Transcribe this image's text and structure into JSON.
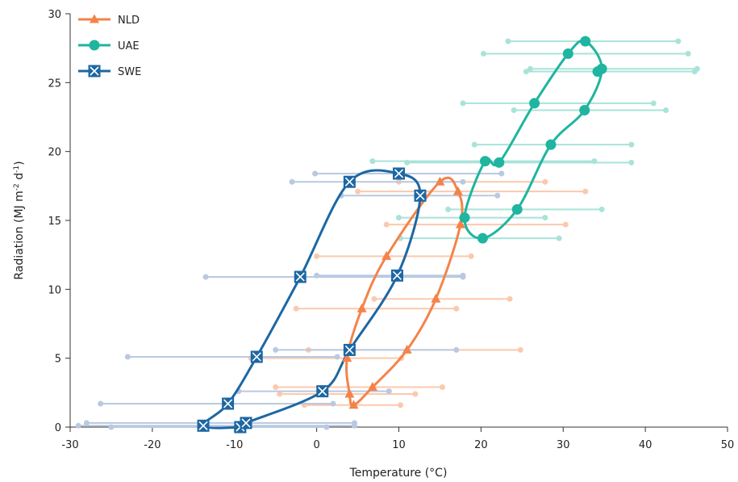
{
  "chart_data": {
    "type": "line",
    "xlabel": "Temperature (°C)",
    "ylabel_parts": [
      "Radiation (MJ m",
      "-2",
      " d",
      "-1",
      ")"
    ],
    "xlim": [
      -30,
      50
    ],
    "ylim": [
      0,
      30
    ],
    "xticks": [
      -30,
      -20,
      -10,
      0,
      10,
      20,
      30,
      40,
      50
    ],
    "yticks": [
      0,
      5,
      10,
      15,
      20,
      25,
      30
    ],
    "grid": false,
    "legend_position": "top-left",
    "series": [
      {
        "name": "NLD",
        "color": "#f4834a",
        "range_color": "#fbc9ad",
        "marker": "triangle",
        "points": [
          {
            "x": 4.5,
            "y": 1.6,
            "min": -1.5,
            "max": 10.2
          },
          {
            "x": 4.0,
            "y": 2.4,
            "min": -4.5,
            "max": 12.0
          },
          {
            "x": 6.8,
            "y": 2.9,
            "min": -5.0,
            "max": 15.3
          },
          {
            "x": 11.0,
            "y": 5.6,
            "min": -1.0,
            "max": 24.8
          },
          {
            "x": 3.7,
            "y": 5.0,
            "min": -8.0,
            "max": 10.3
          },
          {
            "x": 5.5,
            "y": 8.6,
            "min": -2.5,
            "max": 17.0
          },
          {
            "x": 14.5,
            "y": 9.3,
            "min": 7.0,
            "max": 23.5
          },
          {
            "x": 8.5,
            "y": 12.4,
            "min": 0.0,
            "max": 18.8
          },
          {
            "x": 17.5,
            "y": 14.7,
            "min": 8.5,
            "max": 30.3
          },
          {
            "x": 17.2,
            "y": 17.1,
            "min": 5.0,
            "max": 32.7
          },
          {
            "x": 15.0,
            "y": 17.8,
            "min": 10.0,
            "max": 27.8
          }
        ]
      },
      {
        "name": "UAE",
        "color": "#1fb5a0",
        "range_color": "#a9e3d9",
        "marker": "circle",
        "points": [
          {
            "x": 20.2,
            "y": 13.7,
            "min": 10.2,
            "max": 29.5
          },
          {
            "x": 24.4,
            "y": 15.8,
            "min": 16.0,
            "max": 34.7
          },
          {
            "x": 18.0,
            "y": 15.2,
            "min": 10.0,
            "max": 27.8
          },
          {
            "x": 20.5,
            "y": 19.3,
            "min": 6.8,
            "max": 33.8
          },
          {
            "x": 22.2,
            "y": 19.2,
            "min": 11.0,
            "max": 38.3
          },
          {
            "x": 28.5,
            "y": 20.5,
            "min": 19.2,
            "max": 38.3
          },
          {
            "x": 32.6,
            "y": 23.0,
            "min": 24.0,
            "max": 42.5
          },
          {
            "x": 26.5,
            "y": 23.5,
            "min": 17.8,
            "max": 41.0
          },
          {
            "x": 34.2,
            "y": 25.8,
            "min": 25.5,
            "max": 46.0
          },
          {
            "x": 34.7,
            "y": 26.0,
            "min": 26.0,
            "max": 46.3
          },
          {
            "x": 30.6,
            "y": 27.1,
            "min": 20.3,
            "max": 45.2
          },
          {
            "x": 32.7,
            "y": 28.0,
            "min": 23.3,
            "max": 44.0
          }
        ]
      },
      {
        "name": "SWE",
        "color": "#1d67a3",
        "range_color": "#b9c9e1",
        "marker": "boxx",
        "points": [
          {
            "x": -13.8,
            "y": 0.1,
            "min": -29.0,
            "max": 4.6
          },
          {
            "x": -9.3,
            "y": 0.0,
            "min": -25.0,
            "max": 1.2
          },
          {
            "x": -8.6,
            "y": 0.3,
            "min": -28.0,
            "max": 4.6
          },
          {
            "x": -10.8,
            "y": 1.7,
            "min": -26.3,
            "max": 2.0
          },
          {
            "x": 0.7,
            "y": 2.6,
            "min": -9.5,
            "max": 8.8
          },
          {
            "x": -7.3,
            "y": 5.1,
            "min": -23.0,
            "max": 2.5
          },
          {
            "x": 4.0,
            "y": 5.6,
            "min": -5.0,
            "max": 17.0
          },
          {
            "x": -2.0,
            "y": 10.9,
            "min": -13.5,
            "max": 17.8
          },
          {
            "x": 9.8,
            "y": 11.0,
            "min": 0.0,
            "max": 17.8
          },
          {
            "x": 12.6,
            "y": 16.8,
            "min": 3.0,
            "max": 22.0
          },
          {
            "x": 4.0,
            "y": 17.8,
            "min": -3.0,
            "max": 17.8
          },
          {
            "x": 10.0,
            "y": 18.4,
            "min": -0.2,
            "max": 22.5
          }
        ]
      }
    ],
    "loops": {
      "NLD": [
        [
          4.5,
          1.6
        ],
        [
          6.8,
          2.9
        ],
        [
          11.0,
          5.6
        ],
        [
          14.5,
          9.3
        ],
        [
          17.5,
          14.7
        ],
        [
          17.2,
          17.1
        ],
        [
          15.0,
          17.8
        ],
        [
          8.5,
          12.4
        ],
        [
          5.5,
          8.6
        ],
        [
          3.7,
          5.0
        ],
        [
          4.0,
          2.4
        ],
        [
          4.5,
          1.6
        ]
      ],
      "UAE": [
        [
          20.2,
          13.7
        ],
        [
          24.4,
          15.8
        ],
        [
          28.5,
          20.5
        ],
        [
          32.6,
          23.0
        ],
        [
          34.7,
          26.0
        ],
        [
          32.7,
          28.0
        ],
        [
          30.6,
          27.1
        ],
        [
          26.5,
          23.5
        ],
        [
          22.2,
          19.2
        ],
        [
          20.5,
          19.3
        ],
        [
          18.0,
          15.2
        ],
        [
          20.2,
          13.7
        ]
      ],
      "SWE": [
        [
          -13.8,
          0.1
        ],
        [
          -10.8,
          1.7
        ],
        [
          -7.3,
          5.1
        ],
        [
          -2.0,
          10.9
        ],
        [
          4.0,
          17.8
        ],
        [
          10.0,
          18.4
        ],
        [
          12.6,
          16.8
        ],
        [
          9.8,
          11.0
        ],
        [
          4.0,
          5.6
        ],
        [
          0.7,
          2.6
        ],
        [
          -8.6,
          0.3
        ],
        [
          -9.3,
          0.0
        ],
        [
          -13.8,
          0.1
        ]
      ]
    }
  }
}
